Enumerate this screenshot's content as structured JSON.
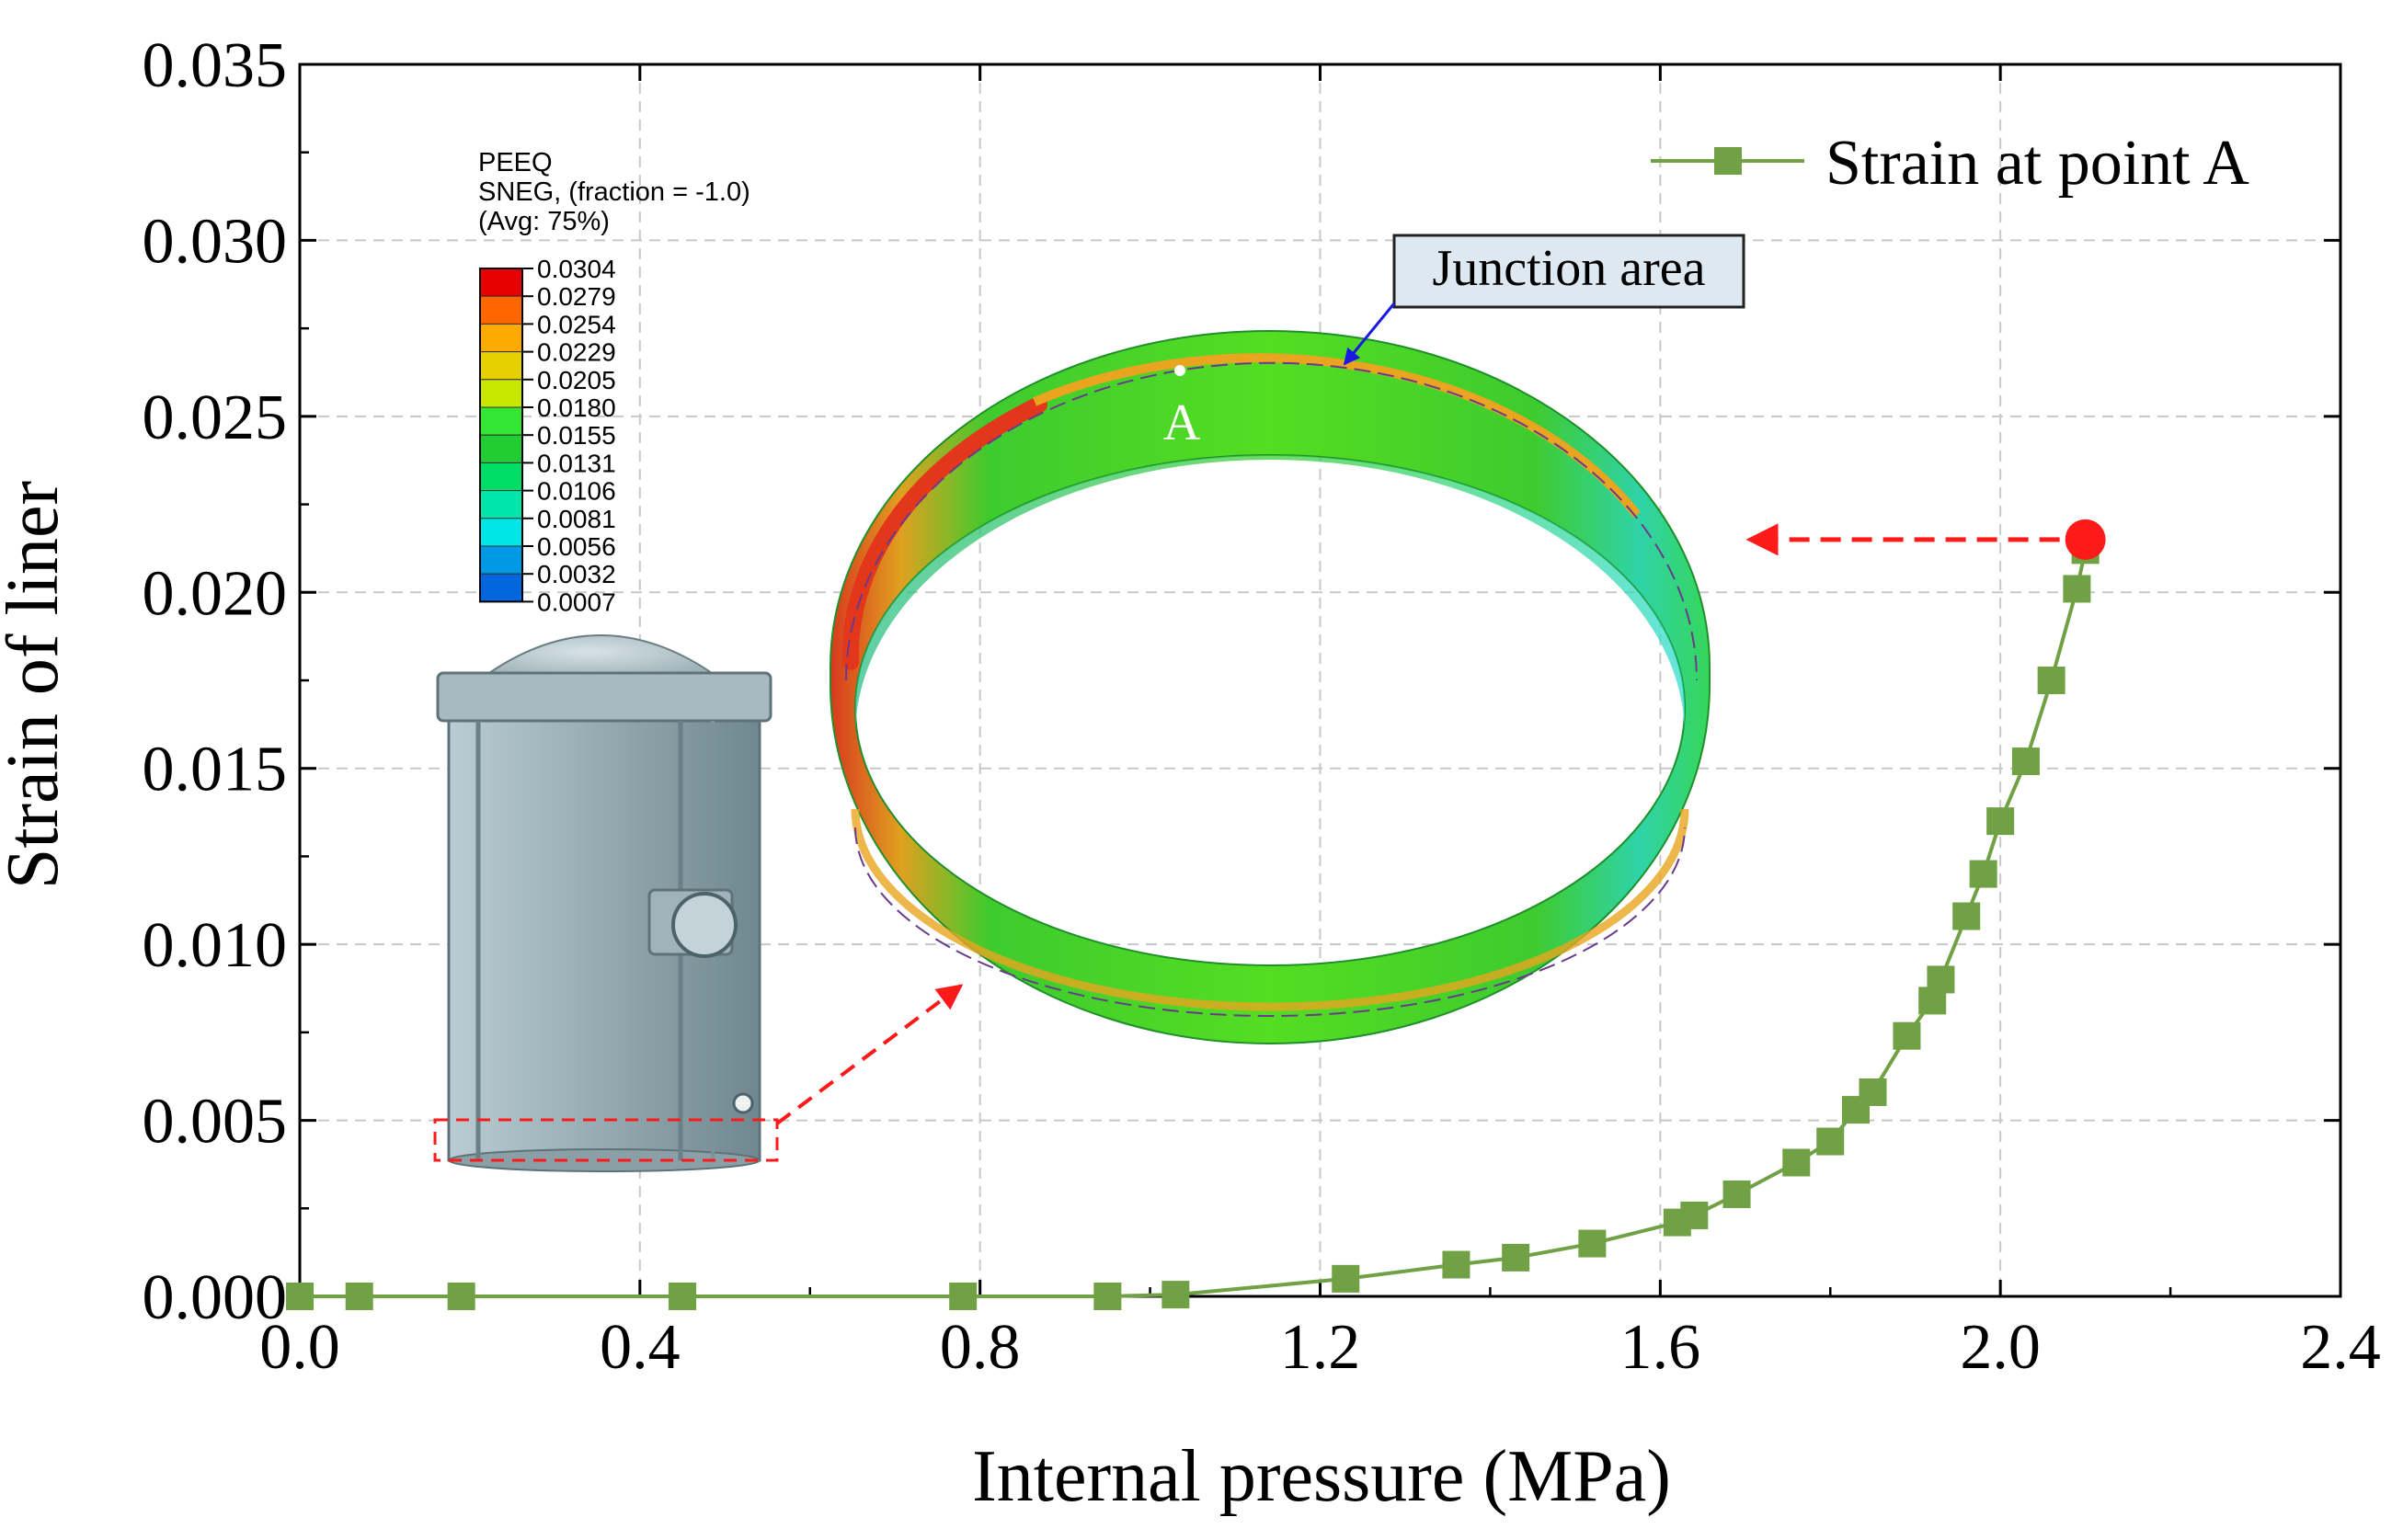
{
  "chart_data": {
    "type": "line",
    "title": "",
    "xlabel": "Internal pressure (MPa)",
    "ylabel": "Strain of liner",
    "xlim": [
      0.0,
      2.4
    ],
    "ylim": [
      0.0,
      0.035
    ],
    "xticks": [
      "0.0",
      "0.4",
      "0.8",
      "1.2",
      "1.6",
      "2.0",
      "2.4"
    ],
    "xtick_values": [
      0.0,
      0.4,
      0.8,
      1.2,
      1.6,
      2.0,
      2.4
    ],
    "yticks": [
      "0.000",
      "0.005",
      "0.010",
      "0.015",
      "0.020",
      "0.025",
      "0.030",
      "0.035"
    ],
    "ytick_values": [
      0.0,
      0.005,
      0.01,
      0.015,
      0.02,
      0.025,
      0.03,
      0.035
    ],
    "grid": true,
    "legend_position": "top-right",
    "series": [
      {
        "name": "Strain at point A",
        "color": "#70a144",
        "marker": "square",
        "x": [
          0.0,
          0.07,
          0.19,
          0.45,
          0.78,
          0.95,
          1.03,
          1.23,
          1.36,
          1.43,
          1.52,
          1.62,
          1.64,
          1.69,
          1.76,
          1.8,
          1.83,
          1.85,
          1.89,
          1.92,
          1.93,
          1.96,
          1.98,
          2.0,
          2.03,
          2.06,
          2.09,
          2.1
        ],
        "y": [
          0.0,
          0.0,
          0.0,
          0.0,
          0.0,
          0.0,
          5e-05,
          0.0005,
          0.0009,
          0.0011,
          0.0015,
          0.0021,
          0.0023,
          0.0029,
          0.0038,
          0.0044,
          0.0053,
          0.0058,
          0.0074,
          0.0084,
          0.009,
          0.0108,
          0.012,
          0.0135,
          0.0152,
          0.0175,
          0.0201,
          0.0212
        ]
      }
    ],
    "highlight_point": {
      "x": 2.1,
      "y": 0.0215,
      "color": "#ff1a1a"
    },
    "annotations": {
      "junction_label": "Junction area",
      "point_label": "A",
      "contour_legend": {
        "title_lines": [
          "PEEQ",
          "SNEG, (fraction = -1.0)",
          "(Avg: 75%)"
        ],
        "values": [
          "0.0304",
          "0.0279",
          "0.0254",
          "0.0229",
          "0.0205",
          "0.0180",
          "0.0155",
          "0.0131",
          "0.0106",
          "0.0081",
          "0.0056",
          "0.0032",
          "0.0007"
        ],
        "colors": [
          "#e60000",
          "#ff6600",
          "#ffaa00",
          "#e6d000",
          "#c8e600",
          "#33e633",
          "#22cc33",
          "#00dd66",
          "#00e6aa",
          "#00e6e6",
          "#0099e6",
          "#0066dd",
          "#0000e6"
        ]
      }
    }
  }
}
